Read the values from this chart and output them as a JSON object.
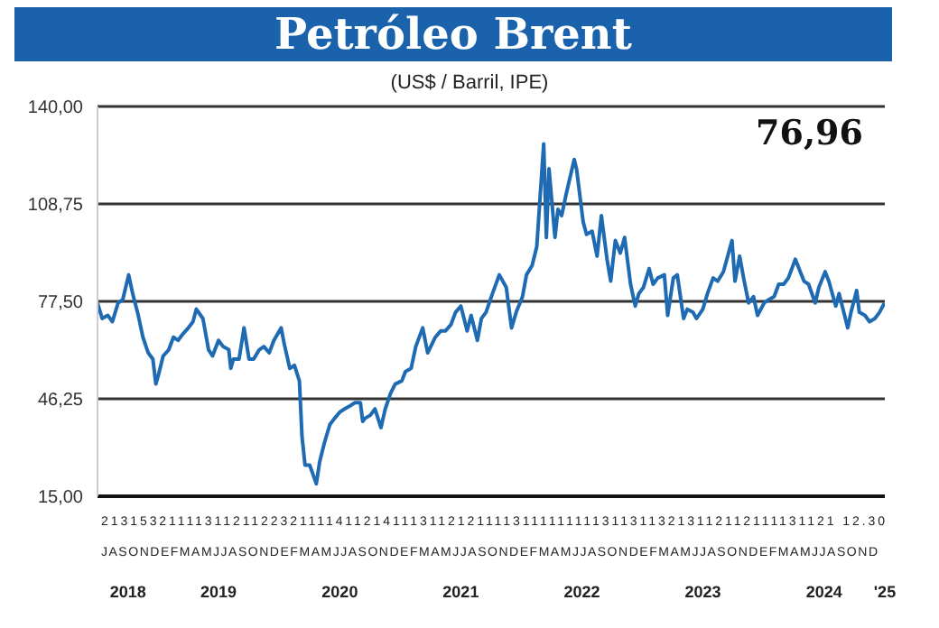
{
  "chart_data": {
    "type": "line",
    "title": "Petróleo Brent",
    "subtitle": "(US$ / Barril, IPE)",
    "annotations": [
      "76,96",
      "2131532111131121122321111411214111311212111131111111113113113213112112111131121 12.30",
      "JASONDEFMAMJJASONDEFMAMJJASONDEFMAMJJASONDEFMAMJJASONDEFMAMJJASONDEFMAMJJASOND"
    ],
    "x": [
      "2018-07-01",
      "2018-07-15",
      "2018-08-01",
      "2018-08-15",
      "2018-09-01",
      "2018-09-15",
      "2018-10-03",
      "2018-10-15",
      "2018-11-01",
      "2018-11-15",
      "2018-12-01",
      "2018-12-15",
      "2018-12-24",
      "2019-01-01",
      "2019-01-15",
      "2019-02-01",
      "2019-02-15",
      "2019-03-01",
      "2019-03-15",
      "2019-04-01",
      "2019-04-15",
      "2019-04-25",
      "2019-05-15",
      "2019-06-01",
      "2019-06-13",
      "2019-07-01",
      "2019-07-15",
      "2019-08-01",
      "2019-08-07",
      "2019-08-15",
      "2019-09-01",
      "2019-09-16",
      "2019-10-01",
      "2019-10-15",
      "2019-11-01",
      "2019-11-15",
      "2019-12-01",
      "2019-12-15",
      "2020-01-06",
      "2020-01-15",
      "2020-02-01",
      "2020-02-15",
      "2020-03-01",
      "2020-03-09",
      "2020-03-18",
      "2020-04-01",
      "2020-04-21",
      "2020-05-01",
      "2020-05-15",
      "2020-06-01",
      "2020-06-15",
      "2020-07-01",
      "2020-07-15",
      "2020-08-01",
      "2020-08-15",
      "2020-09-01",
      "2020-09-08",
      "2020-09-15",
      "2020-10-01",
      "2020-10-15",
      "2020-11-02",
      "2020-11-15",
      "2020-12-01",
      "2020-12-15",
      "2021-01-04",
      "2021-01-15",
      "2021-02-01",
      "2021-02-15",
      "2021-03-08",
      "2021-03-23",
      "2021-04-15",
      "2021-05-01",
      "2021-05-15",
      "2021-06-01",
      "2021-06-15",
      "2021-07-01",
      "2021-07-20",
      "2021-08-01",
      "2021-08-20",
      "2021-09-01",
      "2021-09-15",
      "2021-10-01",
      "2021-10-25",
      "2021-11-15",
      "2021-12-01",
      "2021-12-15",
      "2022-01-03",
      "2022-01-15",
      "2022-02-01",
      "2022-02-15",
      "2022-03-08",
      "2022-03-16",
      "2022-03-24",
      "2022-04-11",
      "2022-04-20",
      "2022-05-01",
      "2022-05-15",
      "2022-06-08",
      "2022-06-15",
      "2022-07-05",
      "2022-07-15",
      "2022-08-01",
      "2022-08-16",
      "2022-08-29",
      "2022-09-15",
      "2022-09-26",
      "2022-10-10",
      "2022-10-25",
      "2022-11-07",
      "2022-11-25",
      "2022-12-09",
      "2022-12-20",
      "2023-01-03",
      "2023-01-20",
      "2023-02-01",
      "2023-02-15",
      "2023-03-07",
      "2023-03-17",
      "2023-04-03",
      "2023-04-15",
      "2023-05-04",
      "2023-05-15",
      "2023-06-01",
      "2023-06-12",
      "2023-07-01",
      "2023-07-15",
      "2023-08-01",
      "2023-08-15",
      "2023-09-01",
      "2023-09-27",
      "2023-10-06",
      "2023-10-20",
      "2023-11-01",
      "2023-11-16",
      "2023-12-01",
      "2023-12-13",
      "2024-01-02",
      "2024-01-15",
      "2024-02-01",
      "2024-02-15",
      "2024-03-01",
      "2024-03-15",
      "2024-04-05",
      "2024-04-20",
      "2024-05-01",
      "2024-05-15",
      "2024-06-04",
      "2024-06-15",
      "2024-07-04",
      "2024-07-15",
      "2024-08-05",
      "2024-08-15",
      "2024-09-10",
      "2024-09-20",
      "2024-10-07",
      "2024-10-15",
      "2024-11-01",
      "2024-11-15",
      "2024-12-01",
      "2024-12-15",
      "2024-12-30"
    ],
    "series": [
      {
        "color": "#1f6bb3",
        "values": [
          77,
          72,
          73,
          71,
          77,
          78,
          86,
          80,
          73,
          66,
          61,
          59,
          51,
          54,
          60,
          62,
          66,
          65,
          67,
          69,
          71,
          75,
          72,
          62,
          60,
          65,
          63,
          62,
          56,
          59,
          59,
          69,
          59,
          59,
          62,
          63,
          61,
          65,
          69,
          64,
          56,
          57,
          52,
          34,
          25,
          25,
          19,
          26,
          32,
          38,
          40,
          42,
          43,
          44,
          45,
          45,
          39,
          40,
          41,
          43,
          37,
          43,
          48,
          51,
          52,
          55,
          56,
          63,
          69,
          61,
          66,
          68,
          68,
          70,
          74,
          76,
          68,
          73,
          65,
          72,
          74,
          79,
          86,
          82,
          69,
          74,
          79,
          86,
          89,
          95,
          128,
          98,
          120,
          98,
          107,
          105,
          112,
          123,
          120,
          103,
          99,
          100,
          92,
          105,
          91,
          84,
          97,
          93,
          98,
          83,
          76,
          80,
          82,
          88,
          83,
          85,
          86,
          73,
          85,
          86,
          72,
          75,
          74,
          72,
          75,
          80,
          85,
          84,
          87,
          97,
          84,
          92,
          85,
          77,
          79,
          73,
          77,
          78,
          79,
          83,
          83,
          85,
          91,
          87,
          84,
          83,
          77,
          82,
          87,
          84,
          76,
          80,
          69,
          74,
          81,
          74,
          73,
          71,
          72,
          74,
          77
        ]
      }
    ],
    "xlim": [
      "2018-07-01",
      "2024-12-31"
    ],
    "xticks": [
      {
        "value": "2018-10-01",
        "label": "2018"
      },
      {
        "value": "2019-07-01",
        "label": "2019"
      },
      {
        "value": "2020-07-01",
        "label": "2020"
      },
      {
        "value": "2021-07-01",
        "label": "2021"
      },
      {
        "value": "2022-07-01",
        "label": "2022"
      },
      {
        "value": "2023-07-01",
        "label": "2023"
      },
      {
        "value": "2024-07-01",
        "label": "2024"
      },
      {
        "value": "2024-12-31",
        "label": "'25"
      }
    ],
    "ylim": [
      15,
      140
    ],
    "yticks": [
      {
        "value": 15,
        "label": "15,00"
      },
      {
        "value": 46.25,
        "label": "46,25"
      },
      {
        "value": 77.5,
        "label": "77,50"
      },
      {
        "value": 108.75,
        "label": "108,75"
      },
      {
        "value": 140,
        "label": "140,00"
      }
    ],
    "grid": "y",
    "legend": false,
    "marker": "none",
    "line_style": "solid"
  }
}
